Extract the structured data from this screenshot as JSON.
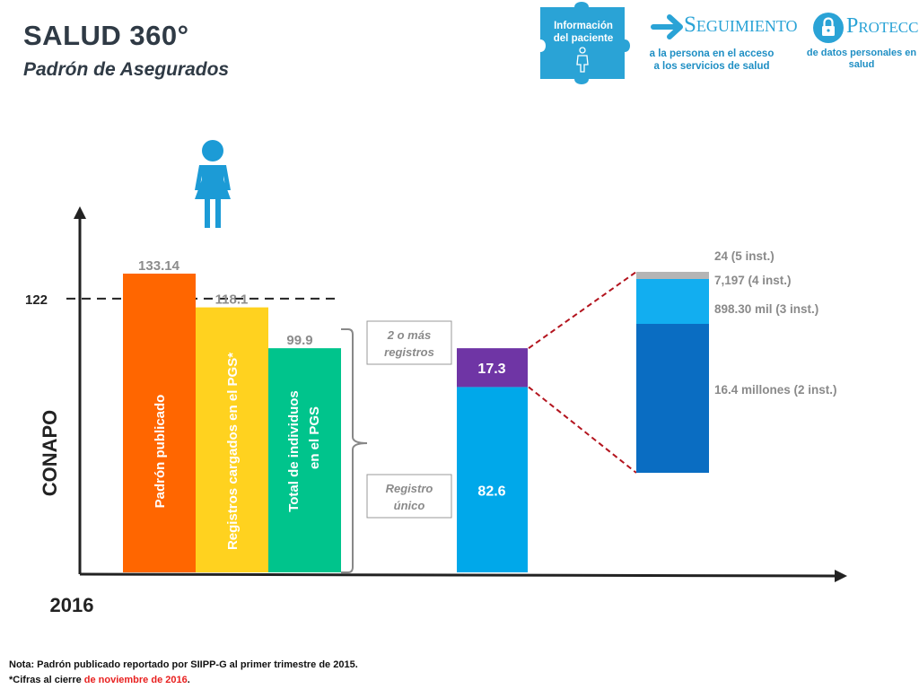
{
  "header": {
    "title": "SALUD 360°",
    "subtitle": "Padrón de Asegurados",
    "puzzle_label_1": "Información",
    "puzzle_label_2": "del paciente",
    "seguimiento_title": "Seguimiento",
    "seguimiento_sub_1": "a la persona en el acceso",
    "seguimiento_sub_2": "a los servicios de salud",
    "proteccion_title": "Protección",
    "proteccion_sub_1": "de datos personales en",
    "proteccion_sub_2": "salud"
  },
  "colors": {
    "accent_blue": "#2aa3d6",
    "orange": "#ff6600",
    "yellow": "#ffd21f",
    "green": "#00c48c",
    "sky": "#00a8ea",
    "purple": "#6f35a5",
    "dark_blue": "#0a6dc2",
    "mid_blue": "#12aef0",
    "gray": "#b5b5b5",
    "dash_red": "#b3141e"
  },
  "chart_data": {
    "type": "bar",
    "y_axis_label": "CONAPO",
    "x_axis_label": "2016",
    "reference_line": {
      "value": 122,
      "label": "122"
    },
    "bars": [
      {
        "value": 133.14,
        "value_label": "133.14",
        "inner_label": "Padrón publicado",
        "color": "#ff6600"
      },
      {
        "value": 118.1,
        "value_label": "118.1",
        "inner_label": "Registros cargados en el PGS*",
        "color": "#ffd21f"
      },
      {
        "value": 99.9,
        "value_label": "99.9",
        "inner_label_1": "Total de individuos",
        "inner_label_2": "en el PGS",
        "color": "#00c48c"
      }
    ],
    "split_bar": {
      "segments": [
        {
          "name": "Registro único",
          "value": 82.6,
          "value_label": "82.6",
          "color": "#00a8ea"
        },
        {
          "name": "2 o más registros",
          "value": 17.3,
          "value_label": "17.3",
          "color": "#6f35a5"
        }
      ],
      "callout_top_1": "2 o más",
      "callout_top_2": "registros",
      "callout_bottom_1": "Registro",
      "callout_bottom_2": "único"
    },
    "breakdown": [
      {
        "label": "16.4 millones (2 inst.)",
        "value": 16.4,
        "color": "#0a6dc2"
      },
      {
        "label": "898.30 mil (3 inst.)",
        "value": 0.8983,
        "color": "#12aef0"
      },
      {
        "label": "7,197 (4 inst.)",
        "value": 0.007197,
        "color": "#b5b5b5"
      },
      {
        "label": "24 (5 inst.)",
        "value": 2.4e-05,
        "color": "#b5b5b5"
      }
    ]
  },
  "notes": {
    "line1": "Nota: Padrón publicado reportado por SIIPP-G al primer trimestre de 2015.",
    "line2_a": "*Cifras al cierre ",
    "line2_b": "de noviembre de 2016",
    "line2_c": "."
  }
}
